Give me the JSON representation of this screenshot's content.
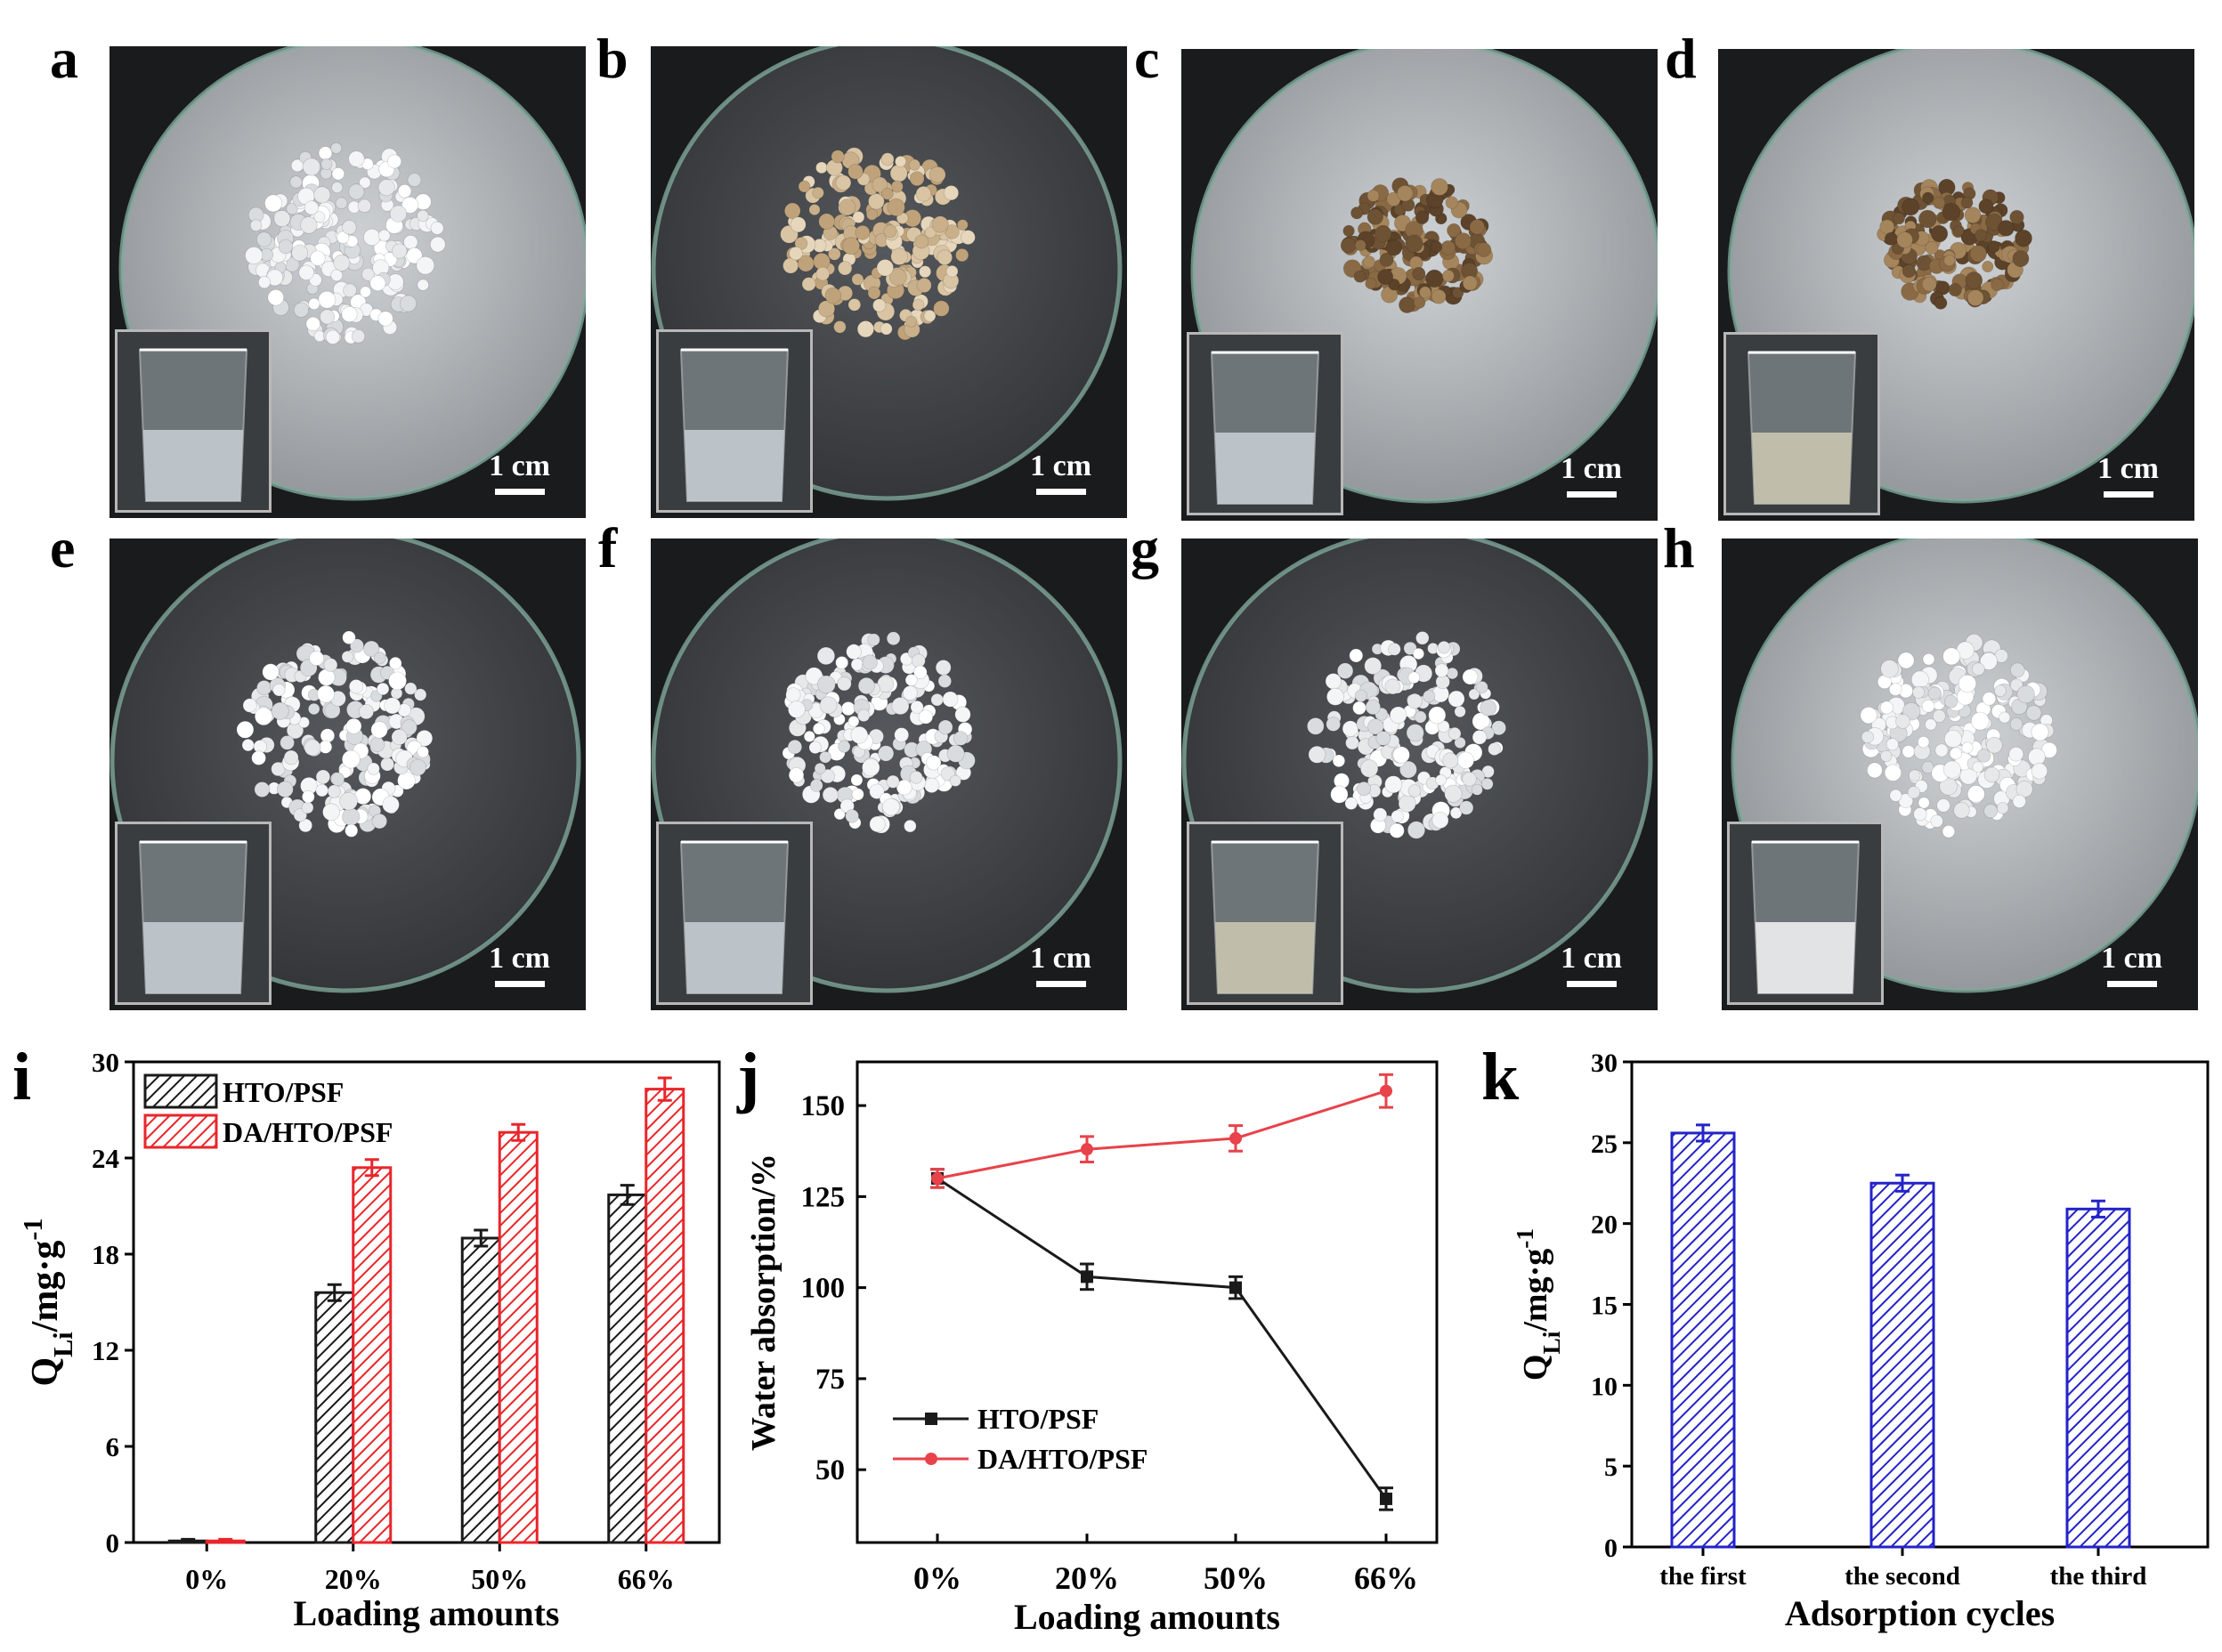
{
  "panels": {
    "a": {
      "label": "a",
      "scale": "1 cm",
      "theme": "light-glass",
      "beads": "white"
    },
    "b": {
      "label": "b",
      "scale": "1 cm",
      "theme": "dark-glass",
      "beads": "beige"
    },
    "c": {
      "label": "c",
      "scale": "1 cm",
      "theme": "light-glass",
      "beads": "brown"
    },
    "d": {
      "label": "d",
      "scale": "1 cm",
      "theme": "light-glass",
      "beads": "brown"
    },
    "e": {
      "label": "e",
      "scale": "1 cm",
      "theme": "dark-glass",
      "beads": "white"
    },
    "f": {
      "label": "f",
      "scale": "1 cm",
      "theme": "dark-glass",
      "beads": "white"
    },
    "g": {
      "label": "g",
      "scale": "1 cm",
      "theme": "dark-glass",
      "beads": "white"
    },
    "h": {
      "label": "h",
      "scale": "1 cm",
      "theme": "light-glass",
      "beads": "white"
    },
    "i": {
      "label": "i"
    },
    "j": {
      "label": "j"
    },
    "k": {
      "label": "k"
    }
  },
  "colors": {
    "black": "#1a1a1a",
    "red": "#e8262b",
    "blue": "#2323c8"
  },
  "chart_data": [
    {
      "id": "i",
      "type": "bar",
      "categories": [
        "0%",
        "20%",
        "50%",
        "66%"
      ],
      "series": [
        {
          "name": "HTO/PSF",
          "values": [
            0.1,
            15.6,
            19.0,
            21.7
          ],
          "errors": [
            0.1,
            0.5,
            0.5,
            0.6
          ],
          "color": "#1a1a1a",
          "pattern": "hatched"
        },
        {
          "name": "DA/HTO/PSF",
          "values": [
            0.1,
            23.4,
            25.6,
            28.3
          ],
          "errors": [
            0.1,
            0.5,
            0.5,
            0.7
          ],
          "color": "#e8262b",
          "pattern": "hatched"
        }
      ],
      "ylim": [
        0,
        30
      ],
      "yticks": [
        "0",
        "6",
        "12",
        "18",
        "24",
        "30"
      ],
      "xlabel": "Loading amounts",
      "ylabel": "Q",
      "ylabel_sub": "Li",
      "ylabel_rest": "/mg·g",
      "ylabel_sup": "-1",
      "legend": "top-left"
    },
    {
      "id": "j",
      "type": "line",
      "categories": [
        "0%",
        "20%",
        "50%",
        "66%"
      ],
      "series": [
        {
          "name": "HTO/PSF",
          "values": [
            130,
            103,
            100,
            42
          ],
          "errors": [
            2.5,
            3.5,
            3,
            3
          ],
          "color": "#1a1a1a",
          "marker": "square"
        },
        {
          "name": "DA/HTO/PSF",
          "values": [
            130,
            138,
            141,
            154
          ],
          "errors": [
            2.5,
            3.5,
            3.5,
            4.5
          ],
          "color": "#e8424a",
          "marker": "circle"
        }
      ],
      "ylim": [
        30,
        162
      ],
      "yticks": [
        "50",
        "75",
        "100",
        "125",
        "150"
      ],
      "xlabel": "Loading amounts",
      "ylabel": "Water absorption/%",
      "legend": "bottom-left"
    },
    {
      "id": "k",
      "type": "bar",
      "categories": [
        "the first",
        "the second",
        "the third"
      ],
      "series": [
        {
          "values": [
            25.6,
            22.5,
            20.9
          ],
          "errors": [
            0.5,
            0.5,
            0.5
          ],
          "color": "#2323c8",
          "pattern": "hatched"
        }
      ],
      "ylim": [
        0,
        30
      ],
      "yticks": [
        "0",
        "5",
        "10",
        "15",
        "20",
        "25",
        "30"
      ],
      "xlabel": "Adsorption cycles",
      "ylabel": "Q",
      "ylabel_sub": "Li",
      "ylabel_rest": "/mg·g",
      "ylabel_sup": "-1"
    }
  ]
}
